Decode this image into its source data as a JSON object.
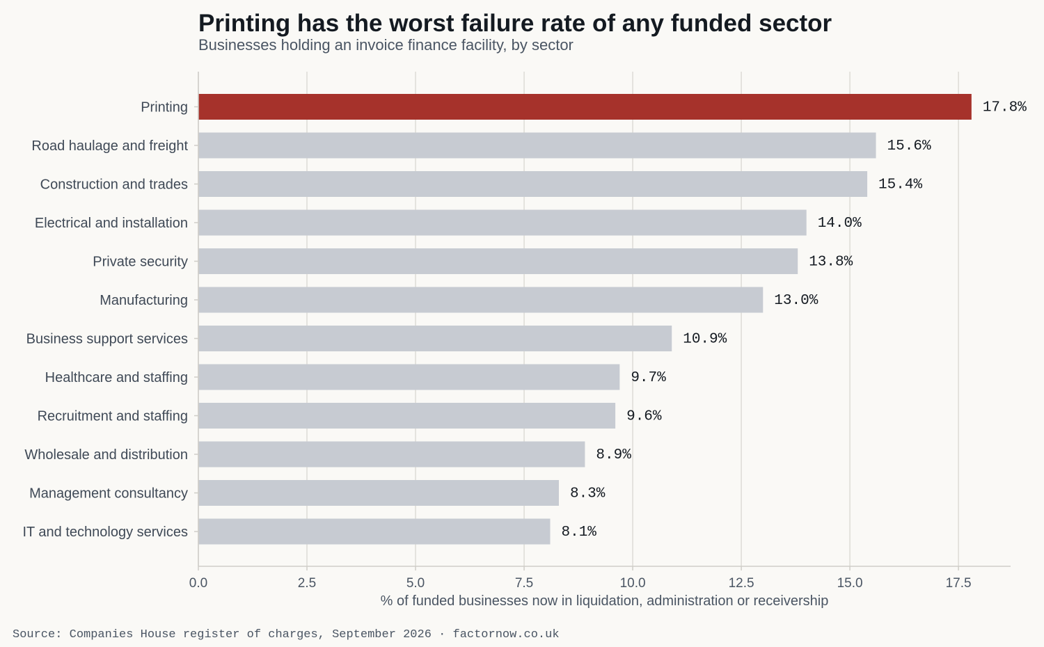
{
  "chart_data": {
    "type": "bar",
    "orientation": "horizontal",
    "title": "Printing has the worst failure rate of any funded sector",
    "subtitle": "Businesses holding an invoice finance facility, by sector",
    "xlabel": "% of funded businesses now in liquidation, administration or receivership",
    "ylabel": "",
    "xlim": [
      0,
      18.7
    ],
    "xticks": [
      0.0,
      2.5,
      5.0,
      7.5,
      10.0,
      12.5,
      15.0,
      17.5
    ],
    "xtick_labels": [
      "0.0",
      "2.5",
      "5.0",
      "7.5",
      "10.0",
      "12.5",
      "15.0",
      "17.5"
    ],
    "grid": "vertical",
    "categories": [
      "Printing",
      "Road haulage and freight",
      "Construction and trades",
      "Electrical and installation",
      "Private security",
      "Manufacturing",
      "Business support services",
      "Healthcare and staffing",
      "Recruitment and staffing",
      "Wholesale and distribution",
      "Management consultancy",
      "IT and technology services"
    ],
    "values": [
      17.8,
      15.6,
      15.4,
      14.0,
      13.8,
      13.0,
      10.9,
      9.7,
      9.6,
      8.9,
      8.3,
      8.1
    ],
    "value_labels": [
      "17.8%",
      "15.6%",
      "15.4%",
      "14.0%",
      "13.8%",
      "13.0%",
      "10.9%",
      "9.7%",
      "9.6%",
      "8.9%",
      "8.3%",
      "8.1%"
    ],
    "highlight_category": "Printing",
    "colors": {
      "highlight": "#a6322b",
      "default": "#c7cbd2",
      "grid": "#dddbd6",
      "axis": "#cfcdc8"
    }
  },
  "footer": {
    "source": "Source: Companies House register of charges, September 2026 · factornow.co.uk"
  }
}
